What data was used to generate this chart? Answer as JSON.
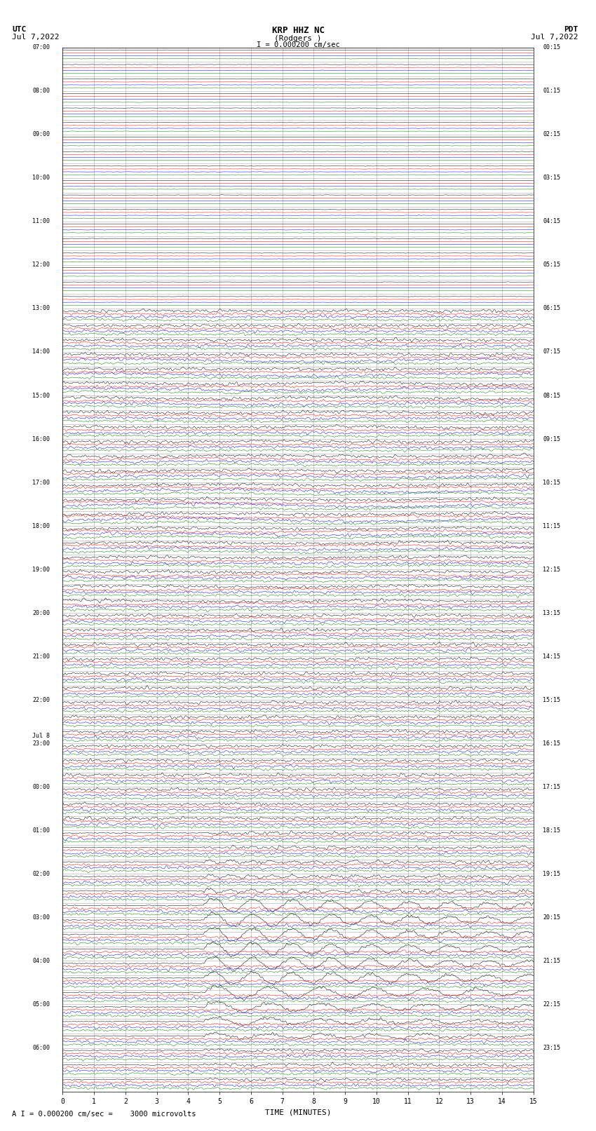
{
  "title": "KRP HHZ NC",
  "subtitle": "(Rodgers )",
  "scale_label": "I = 0.000200 cm/sec",
  "bottom_scale_label": "A I = 0.000200 cm/sec =    3000 microvolts",
  "utc_label": "UTC",
  "pdt_label": "PDT",
  "date_left": "Jul 7,2022",
  "date_right": "Jul 7,2022",
  "xlabel": "TIME (MINUTES)",
  "xmin": 0,
  "xmax": 15,
  "bg_color": "#ffffff",
  "grid_color": "#aaaaaa",
  "trace_colors": [
    "black",
    "red",
    "blue",
    "green"
  ],
  "fig_width": 8.5,
  "fig_height": 16.13,
  "num_rows": 48,
  "silent_rows": 22,
  "utc_labels": [
    [
      0,
      "07:00"
    ],
    [
      3,
      "08:00"
    ],
    [
      6,
      "09:00"
    ],
    [
      9,
      "10:00"
    ],
    [
      12,
      "11:00"
    ],
    [
      15,
      "12:00"
    ],
    [
      18,
      "13:00"
    ],
    [
      21,
      "14:00"
    ],
    [
      24,
      "15:00"
    ],
    [
      27,
      "16:00"
    ],
    [
      30,
      "17:00"
    ],
    [
      33,
      "18:00"
    ],
    [
      36,
      "19:00"
    ],
    [
      39,
      "20:00"
    ],
    [
      42,
      "21:00"
    ],
    [
      45,
      "22:00"
    ],
    [
      48,
      "23:00"
    ],
    [
      51,
      "00:00"
    ],
    [
      54,
      "01:00"
    ],
    [
      57,
      "02:00"
    ],
    [
      60,
      "03:00"
    ],
    [
      63,
      "04:00"
    ],
    [
      66,
      "05:00"
    ],
    [
      69,
      "06:00"
    ]
  ],
  "jul8_row": 48,
  "pdt_labels": [
    [
      0,
      "00:15"
    ],
    [
      3,
      "01:15"
    ],
    [
      6,
      "02:15"
    ],
    [
      9,
      "03:15"
    ],
    [
      12,
      "04:15"
    ],
    [
      15,
      "05:15"
    ],
    [
      18,
      "06:15"
    ],
    [
      21,
      "07:15"
    ],
    [
      24,
      "08:15"
    ],
    [
      27,
      "09:15"
    ],
    [
      30,
      "10:15"
    ],
    [
      33,
      "11:15"
    ],
    [
      36,
      "12:15"
    ],
    [
      39,
      "13:15"
    ],
    [
      42,
      "14:15"
    ],
    [
      45,
      "15:15"
    ],
    [
      48,
      "16:15"
    ],
    [
      51,
      "17:15"
    ],
    [
      54,
      "18:15"
    ],
    [
      57,
      "19:15"
    ],
    [
      60,
      "20:15"
    ],
    [
      63,
      "21:15"
    ],
    [
      66,
      "22:15"
    ],
    [
      69,
      "23:15"
    ]
  ]
}
